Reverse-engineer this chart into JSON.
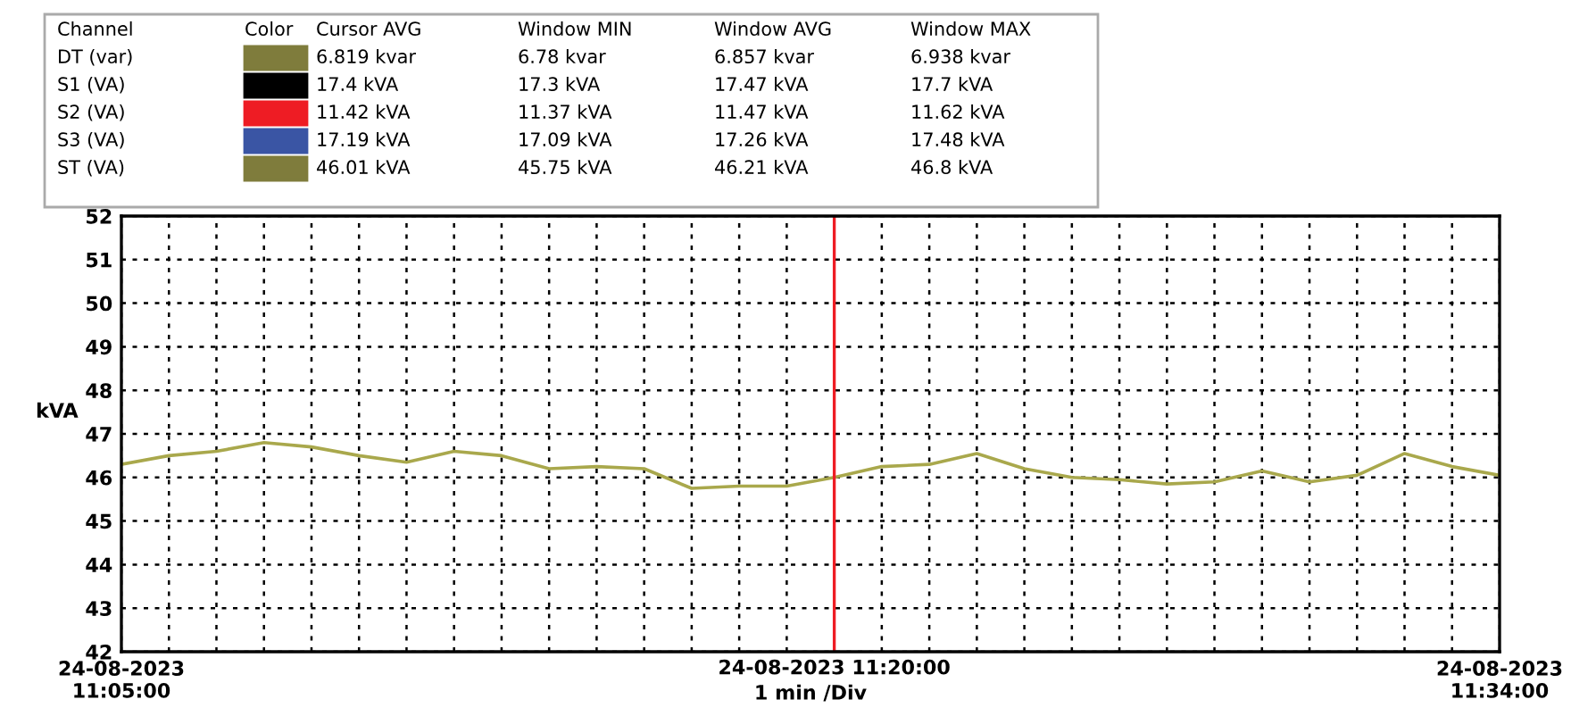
{
  "chart_data": [
    {
      "type": "other",
      "categories": [
        "Channel",
        "Color",
        "Cursor AVG",
        "Window MIN",
        "Window AVG",
        "Window MAX"
      ],
      "y_categories": [
        "DT (var)",
        "S1 (VA)",
        "S2 (VA)",
        "S3 (VA)",
        "ST (VA)"
      ],
      "colors": [
        "#7f7c3c",
        "#000000",
        "#ee1c24",
        "#3a55a4",
        "#7f7c3c"
      ],
      "cell_labels": [
        [
          "6.819 kvar",
          "6.78 kvar",
          "6.857 kvar",
          "6.938 kvar"
        ],
        [
          "17.4 kVA",
          "17.3 kVA",
          "17.47 kVA",
          "17.7 kVA"
        ],
        [
          "11.42 kVA",
          "11.37 kVA",
          "11.47 kVA",
          "11.62 kVA"
        ],
        [
          "17.19 kVA",
          "17.09 kVA",
          "17.26 kVA",
          "17.48 kVA"
        ],
        [
          "46.01 kVA",
          "45.75 kVA",
          "46.21 kVA",
          "46.8 kVA"
        ]
      ]
    },
    {
      "type": "line",
      "ylabel": "kVA",
      "x": [
        "2023-08-24T11:05",
        "2023-08-24T11:06",
        "2023-08-24T11:07",
        "2023-08-24T11:08",
        "2023-08-24T11:09",
        "2023-08-24T11:10",
        "2023-08-24T11:11",
        "2023-08-24T11:12",
        "2023-08-24T11:13",
        "2023-08-24T11:14",
        "2023-08-24T11:15",
        "2023-08-24T11:16",
        "2023-08-24T11:17",
        "2023-08-24T11:18",
        "2023-08-24T11:19",
        "2023-08-24T11:20",
        "2023-08-24T11:21",
        "2023-08-24T11:22",
        "2023-08-24T11:23",
        "2023-08-24T11:24",
        "2023-08-24T11:25",
        "2023-08-24T11:26",
        "2023-08-24T11:27",
        "2023-08-24T11:28",
        "2023-08-24T11:29",
        "2023-08-24T11:30",
        "2023-08-24T11:31",
        "2023-08-24T11:32",
        "2023-08-24T11:33",
        "2023-08-24T11:34"
      ],
      "series": [
        {
          "color": "#a9a84c",
          "values": [
            46.3,
            46.5,
            46.6,
            46.8,
            46.7,
            46.5,
            46.35,
            46.6,
            46.5,
            46.2,
            46.25,
            46.2,
            45.75,
            45.8,
            45.8,
            46.0,
            46.25,
            46.3,
            46.55,
            46.2,
            46.0,
            45.95,
            45.85,
            45.9,
            46.15,
            45.9,
            46.05,
            46.55,
            46.25,
            46.05
          ]
        }
      ],
      "xlim": [
        "2023-08-24T11:05",
        "2023-08-24T11:34"
      ],
      "xticks": [
        {
          "value": "2023-08-24T11:05",
          "label": "24-08-2023\n11:05:00"
        },
        {
          "value": "2023-08-24T11:06",
          "label": null
        },
        {
          "value": "2023-08-24T11:07",
          "label": null
        },
        {
          "value": "2023-08-24T11:08",
          "label": null
        },
        {
          "value": "2023-08-24T11:09",
          "label": null
        },
        {
          "value": "2023-08-24T11:10",
          "label": null
        },
        {
          "value": "2023-08-24T11:11",
          "label": null
        },
        {
          "value": "2023-08-24T11:12",
          "label": null
        },
        {
          "value": "2023-08-24T11:13",
          "label": null
        },
        {
          "value": "2023-08-24T11:14",
          "label": null
        },
        {
          "value": "2023-08-24T11:15",
          "label": null
        },
        {
          "value": "2023-08-24T11:16",
          "label": null
        },
        {
          "value": "2023-08-24T11:17",
          "label": null
        },
        {
          "value": "2023-08-24T11:18",
          "label": null
        },
        {
          "value": "2023-08-24T11:19",
          "label": null
        },
        {
          "value": "2023-08-24T11:20",
          "label": null
        },
        {
          "value": "2023-08-24T11:21",
          "label": null
        },
        {
          "value": "2023-08-24T11:22",
          "label": null
        },
        {
          "value": "2023-08-24T11:23",
          "label": null
        },
        {
          "value": "2023-08-24T11:24",
          "label": null
        },
        {
          "value": "2023-08-24T11:25",
          "label": null
        },
        {
          "value": "2023-08-24T11:26",
          "label": null
        },
        {
          "value": "2023-08-24T11:27",
          "label": null
        },
        {
          "value": "2023-08-24T11:28",
          "label": null
        },
        {
          "value": "2023-08-24T11:29",
          "label": null
        },
        {
          "value": "2023-08-24T11:30",
          "label": null
        },
        {
          "value": "2023-08-24T11:31",
          "label": null
        },
        {
          "value": "2023-08-24T11:32",
          "label": null
        },
        {
          "value": "2023-08-24T11:33",
          "label": null
        },
        {
          "value": "2023-08-24T11:34",
          "label": "24-08-2023\n11:34:00"
        }
      ],
      "ylim": [
        42,
        52
      ],
      "yticks": [
        42,
        43,
        44,
        45,
        46,
        47,
        48,
        49,
        50,
        51,
        52
      ],
      "grid": true,
      "line_style": "solid",
      "ref_lines": [
        {
          "axis": "x",
          "value": "2023-08-24T11:20",
          "label": "24-08-2023 11:20:00",
          "color": "#ee1c24"
        }
      ],
      "xlabel": "1 min /Div"
    }
  ]
}
